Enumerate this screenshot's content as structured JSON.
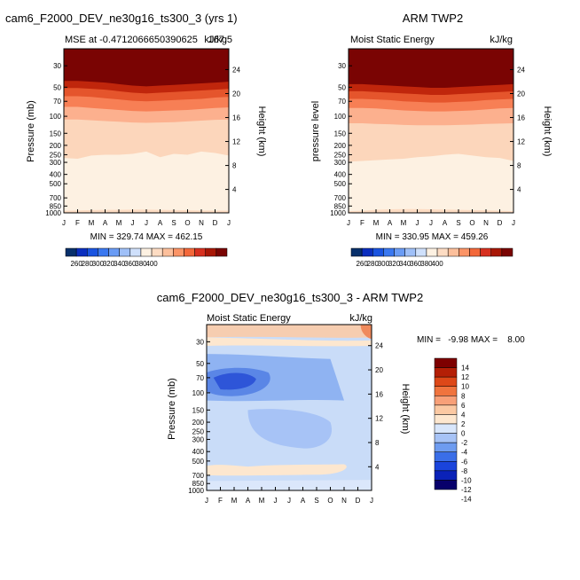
{
  "panel_left": {
    "main_title": "cam6_F2000_DEV_ne30g16_ts300_3 (yrs 1)",
    "sub_left": "MSE at -0.4712066650390625",
    "sub_right": "kJ/kg",
    "sub_overlap": "167.5",
    "ylabel_left": "Pressure (mb)",
    "ylabel_right": "Height (km)",
    "minmax": "MIN = 329.74   MAX = 462.15"
  },
  "panel_right": {
    "main_title": "ARM TWP2",
    "sub_left": "Moist Static Energy",
    "sub_right": "kJ/kg",
    "ylabel_left": "pressure level",
    "ylabel_right": "Height (km)",
    "minmax": "MIN = 330.95   MAX = 459.26"
  },
  "panel_diff": {
    "main_title": "cam6_F2000_DEV_ne30g16_ts300_3 - ARM TWP2",
    "sub_left": "Moist Static Energy",
    "sub_right": "kJ/kg",
    "ylabel_left": "Pressure (mb)",
    "ylabel_right": "Height (km)",
    "minmax": "MIN =   -9.98 MAX =    8.00"
  },
  "colors": {
    "mse": [
      "#08306b",
      "#0b2fbf",
      "#1a54e0",
      "#3a78f0",
      "#6a9cf5",
      "#9fc0f8",
      "#cfe0fb",
      "#fdf1e2",
      "#fddcc3",
      "#fcbf9b",
      "#fb9466",
      "#f3683a",
      "#d7301f",
      "#a81706",
      "#7a0403"
    ],
    "diff": [
      "#08006b",
      "#0a22b8",
      "#1a44dc",
      "#3a6ee8",
      "#6e9cf0",
      "#a7c3f6",
      "#d8e6fb",
      "#fde7cf",
      "#fbc9a3",
      "#f8a078",
      "#f0743e",
      "#dd4818",
      "#b41f06",
      "#7e0000"
    ]
  },
  "chart_data": [
    {
      "type": "heatmap",
      "title": "cam6_F2000_DEV_ne30g16_ts300_3 (yrs 1)",
      "xlabel": "",
      "ylabel": "Pressure (mb)",
      "ylabel_right": "Height (km)",
      "x": [
        "J",
        "F",
        "M",
        "A",
        "M",
        "J",
        "J",
        "A",
        "S",
        "O",
        "N",
        "D",
        "J"
      ],
      "y_ticks": [
        30,
        50,
        70,
        100,
        150,
        200,
        250,
        300,
        400,
        500,
        700,
        850,
        1000
      ],
      "y_right_ticks": [
        24,
        20,
        16,
        12,
        8,
        4
      ],
      "y_scale": "log",
      "ylim": [
        1000,
        20
      ],
      "min": 329.74,
      "max": 462.15,
      "levels": [
        260,
        280,
        300,
        320,
        340,
        360,
        380,
        400
      ],
      "levels_labels": [
        "260",
        "280",
        "300",
        "320",
        "340",
        "360",
        "380",
        "400"
      ],
      "contours_p": {
        "400": [
          51,
          51,
          52,
          53,
          55,
          57,
          58,
          57,
          56,
          55,
          54,
          53,
          52
        ],
        "380": [
          62,
          62,
          63,
          65,
          67,
          69,
          70,
          69,
          68,
          67,
          66,
          64,
          63
        ],
        "360": [
          80,
          80,
          82,
          84,
          86,
          88,
          89,
          88,
          87,
          86,
          84,
          82,
          81
        ],
        "340": [
          108,
          108,
          110,
          112,
          114,
          116,
          117,
          116,
          115,
          113,
          111,
          109,
          108
        ],
        "320": [
          270,
          275,
          255,
          250,
          250,
          245,
          232,
          265,
          245,
          250,
          232,
          240,
          255
        ],
        "300": [
          950,
          945,
          935,
          930,
          930,
          925,
          925,
          930,
          935,
          940,
          945,
          945,
          950
        ]
      }
    },
    {
      "type": "heatmap",
      "title": "ARM TWP2",
      "xlabel": "",
      "ylabel": "pressure level",
      "ylabel_right": "Height (km)",
      "x": [
        "J",
        "F",
        "M",
        "A",
        "M",
        "J",
        "J",
        "A",
        "S",
        "O",
        "N",
        "D",
        "J"
      ],
      "y_ticks": [
        30,
        50,
        70,
        100,
        150,
        200,
        250,
        300,
        400,
        500,
        700,
        850,
        1000
      ],
      "y_right_ticks": [
        24,
        20,
        16,
        12,
        8,
        4
      ],
      "y_scale": "log",
      "ylim": [
        1000,
        20
      ],
      "min": 330.95,
      "max": 459.26,
      "levels": [
        260,
        280,
        300,
        320,
        340,
        360,
        380,
        400
      ],
      "levels_labels": [
        "260",
        "280",
        "300",
        "320",
        "340",
        "360",
        "380",
        "400"
      ],
      "contours_p": {
        "400": [
          55,
          55,
          56,
          57,
          58,
          59,
          60,
          60,
          59,
          58,
          57,
          56,
          55
        ],
        "380": [
          66,
          66,
          67,
          68,
          70,
          71,
          72,
          72,
          71,
          70,
          68,
          67,
          66
        ],
        "360": [
          82,
          82,
          83,
          85,
          87,
          88,
          89,
          89,
          88,
          87,
          85,
          83,
          82
        ],
        "340": [
          118,
          118,
          120,
          121,
          123,
          124,
          124,
          124,
          123,
          122,
          120,
          119,
          118
        ],
        "320": [
          295,
          290,
          285,
          280,
          275,
          265,
          260,
          250,
          245,
          255,
          265,
          270,
          290
        ],
        "300": [
          960,
          950,
          930,
          920,
          915,
          915,
          920,
          925,
          930,
          935,
          940,
          950,
          960
        ]
      }
    },
    {
      "type": "heatmap",
      "title": "cam6_F2000_DEV_ne30g16_ts300_3 - ARM TWP2",
      "xlabel": "",
      "ylabel": "Pressure (mb)",
      "ylabel_right": "Height (km)",
      "x": [
        "J",
        "F",
        "M",
        "A",
        "M",
        "J",
        "J",
        "A",
        "S",
        "O",
        "N",
        "D",
        "J"
      ],
      "y_ticks": [
        30,
        50,
        70,
        100,
        150,
        200,
        250,
        300,
        400,
        500,
        700,
        850,
        1000
      ],
      "y_right_ticks": [
        24,
        20,
        16,
        12,
        8,
        4
      ],
      "y_scale": "log",
      "ylim": [
        1000,
        20
      ],
      "min": -9.98,
      "max": 8.0,
      "levels": [
        -14,
        -12,
        -10,
        -8,
        -6,
        -4,
        -2,
        0,
        2,
        4,
        6,
        8,
        10,
        12,
        14
      ],
      "levels_labels": [
        "14",
        "12",
        "10",
        "8",
        "6",
        "4",
        "2",
        "0",
        "-2",
        "-4",
        "-6",
        "-8",
        "-10",
        "-12",
        "-14"
      ]
    }
  ]
}
